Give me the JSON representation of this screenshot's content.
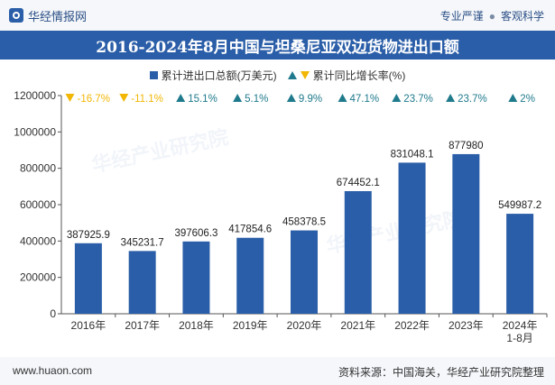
{
  "header": {
    "brand": "华经情报网",
    "tag1": "专业严谨",
    "sep": "●",
    "tag2": "客观科学"
  },
  "watermark": {
    "text": "华经产业研究院"
  },
  "footer": {
    "url": "www.huaon.com",
    "source": "资料来源：中国海关，华经产业研究院整理"
  },
  "colors": {
    "bar": "#2b5ea8",
    "up": "#1f7a8c",
    "down": "#f2b705",
    "title_bg": "#2b5ea8"
  },
  "chart_data": {
    "type": "bar",
    "title": "2016-2024年8月中国与坦桑尼亚双边货物进出口额",
    "categories": [
      "2016年",
      "2017年",
      "2018年",
      "2019年",
      "2020年",
      "2021年",
      "2022年",
      "2023年",
      "2024年 1-8月"
    ],
    "series": [
      {
        "name": "累计进出口总额(万美元)",
        "values": [
          387925.9,
          345231.7,
          397606.3,
          417854.6,
          458378.5,
          674452.1,
          831048.1,
          877980,
          549987.2
        ],
        "labels": [
          "387925.9",
          "345231.7",
          "397606.3",
          "417854.6",
          "458378.5",
          "674452.1",
          "831048.1",
          "877980",
          "549987.2"
        ]
      },
      {
        "name": "累计同比增长率(%)",
        "values": [
          -16.7,
          -11.1,
          15.1,
          5.1,
          9.9,
          47.1,
          23.7,
          23.7,
          2
        ],
        "labels": [
          "-16.7%",
          "-11.1%",
          "15.1%",
          "5.1%",
          "9.9%",
          "47.1%",
          "23.7%",
          "23.7%",
          "2%"
        ]
      }
    ],
    "yticks": [
      "0",
      "200000",
      "400000",
      "600000",
      "800000",
      "1000000",
      "1200000"
    ],
    "ylim": [
      0,
      1200000
    ],
    "xlabel": "",
    "ylabel": "",
    "grid": false,
    "legend": "top-center"
  }
}
